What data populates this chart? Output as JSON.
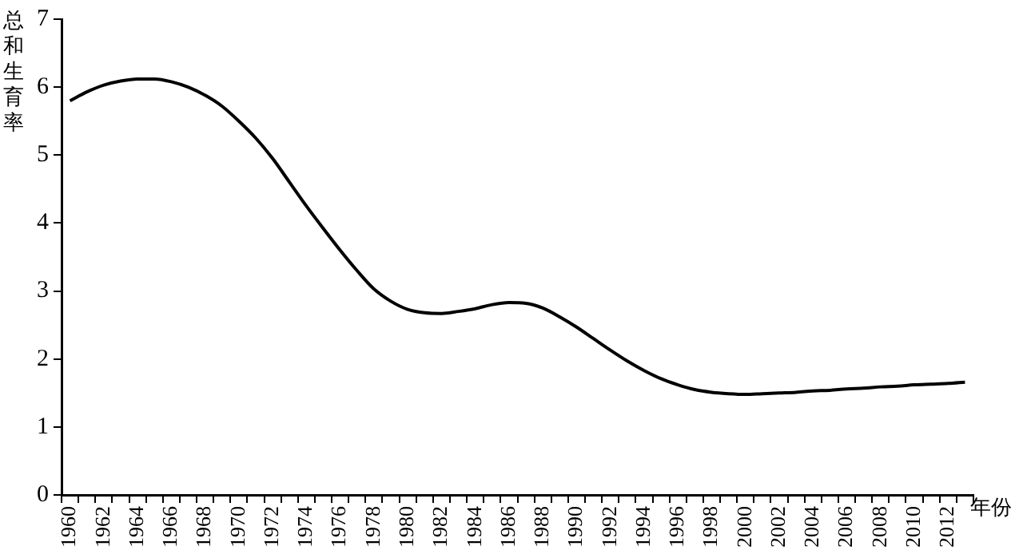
{
  "chart_data": {
    "type": "line",
    "ylabel": "总和生育率",
    "xlabel": "年份",
    "categories": [
      "1960",
      null,
      "1962",
      null,
      "1964",
      null,
      "1966",
      null,
      "1968",
      null,
      "1970",
      null,
      "1972",
      null,
      "1974",
      null,
      "1976",
      null,
      "1978",
      null,
      "1980",
      null,
      "1982",
      null,
      "1984",
      null,
      "1986",
      null,
      "1988",
      null,
      "1990",
      null,
      "1992",
      null,
      "1994",
      null,
      "1996",
      null,
      "1998",
      null,
      "2000",
      null,
      "2002",
      null,
      "2004",
      null,
      "2006",
      null,
      "2008",
      null,
      "2010",
      null,
      "2012",
      null
    ],
    "series": [
      {
        "color": "#000000",
        "values": [
          5.8,
          5.93,
          6.03,
          6.09,
          6.12,
          6.12,
          6.08,
          6.0,
          5.88,
          5.72,
          5.5,
          5.25,
          4.95,
          4.6,
          4.25,
          3.92,
          3.6,
          3.3,
          3.03,
          2.85,
          2.73,
          2.68,
          2.67,
          2.7,
          2.74,
          2.8,
          2.83,
          2.82,
          2.75,
          2.62,
          2.47,
          2.3,
          2.13,
          1.97,
          1.83,
          1.71,
          1.62,
          1.55,
          1.51,
          1.49,
          1.48,
          1.49,
          1.5,
          1.51,
          1.53,
          1.54,
          1.56,
          1.57,
          1.59,
          1.6,
          1.62,
          1.63,
          1.64,
          1.66
        ]
      }
    ],
    "ylim": [
      0,
      7
    ],
    "yticks": [
      0,
      1,
      2,
      3,
      4,
      5,
      6,
      7
    ],
    "grid": false,
    "legend": false,
    "marker": "none",
    "line_style": "solid"
  }
}
